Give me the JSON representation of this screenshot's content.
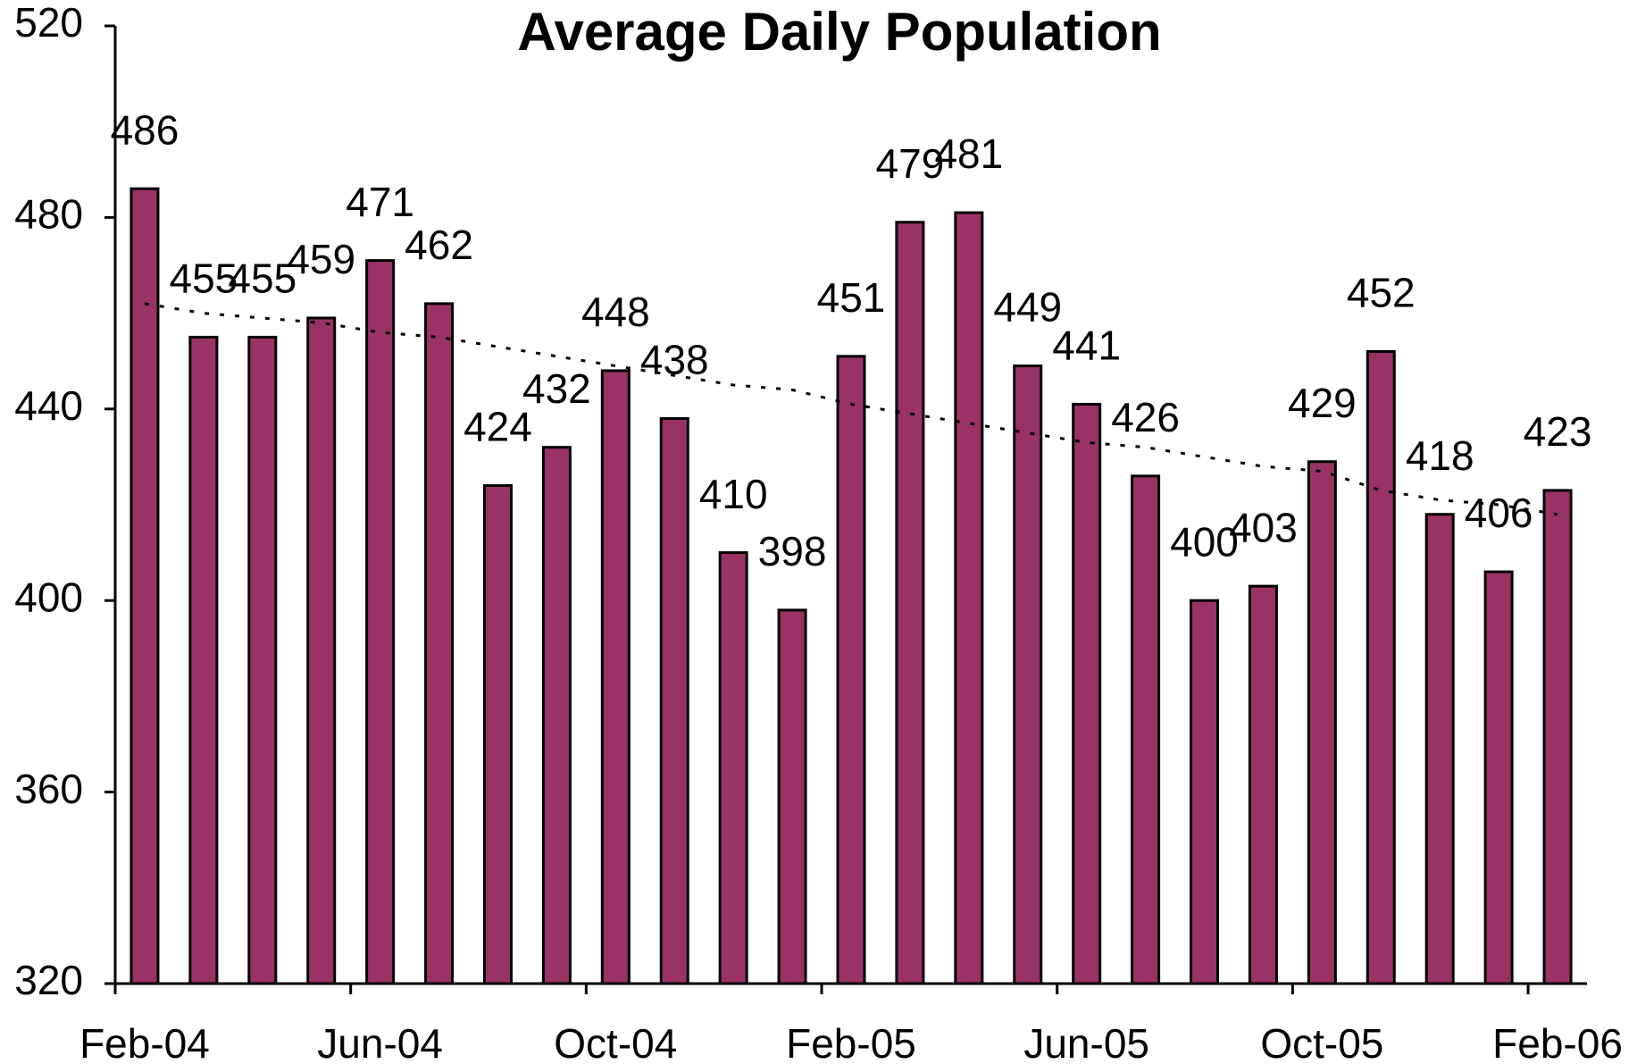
{
  "chart_data": {
    "type": "bar",
    "title": "Average Daily Population",
    "categories": [
      "Feb-04",
      null,
      null,
      null,
      "Jun-04",
      null,
      null,
      null,
      "Oct-04",
      null,
      null,
      null,
      "Feb-05",
      null,
      null,
      null,
      "Jun-05",
      null,
      null,
      null,
      "Oct-05",
      null,
      null,
      null,
      "Feb-06"
    ],
    "values": [
      486,
      455,
      455,
      459,
      471,
      462,
      424,
      432,
      448,
      438,
      410,
      398,
      451,
      479,
      481,
      449,
      441,
      426,
      400,
      403,
      429,
      452,
      418,
      406,
      423
    ],
    "trend_values": [
      462,
      460,
      459,
      458,
      456,
      455,
      453,
      451,
      449,
      447,
      445,
      444,
      441,
      439,
      437,
      435,
      433,
      432,
      430,
      428,
      427,
      423,
      421,
      420,
      418
    ],
    "color": "#993366",
    "trend_color": "#000000",
    "ylim": [
      320,
      520
    ],
    "yticks": [
      320,
      360,
      400,
      440,
      480,
      520
    ],
    "grid": false
  }
}
